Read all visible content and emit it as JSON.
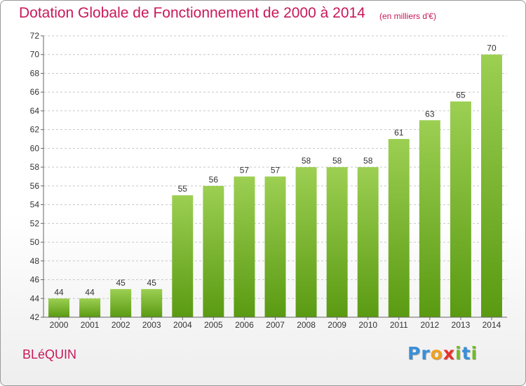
{
  "chart_data": {
    "type": "bar",
    "title": "Dotation Globale de Fonctionnement de 2000 à 2014",
    "subtitle": "(en milliers d'€)",
    "categories": [
      "2000",
      "2001",
      "2002",
      "2003",
      "2004",
      "2005",
      "2006",
      "2007",
      "2008",
      "2009",
      "2010",
      "2011",
      "2012",
      "2013",
      "2014"
    ],
    "values": [
      44,
      44,
      45,
      45,
      55,
      56,
      57,
      57,
      58,
      58,
      58,
      61,
      63,
      65,
      70
    ],
    "ylim": [
      42,
      72
    ],
    "yticks": [
      42,
      44,
      46,
      48,
      50,
      52,
      54,
      56,
      58,
      60,
      62,
      64,
      66,
      68,
      70,
      72
    ],
    "grid": true,
    "bar_color_top": "#9ccf52",
    "bar_color_bottom": "#5a9a12",
    "data_labels": true
  },
  "footer": {
    "commune": "BLéQUIN",
    "logo_letters": [
      "P",
      "r",
      "o",
      "x",
      "i",
      "t",
      "i"
    ],
    "logo_colors": [
      "#3a8fd8",
      "#3a8fd8",
      "#f0a020",
      "#e8302a",
      "#74b82c",
      "#3a8fd8",
      "#74b82c"
    ]
  }
}
